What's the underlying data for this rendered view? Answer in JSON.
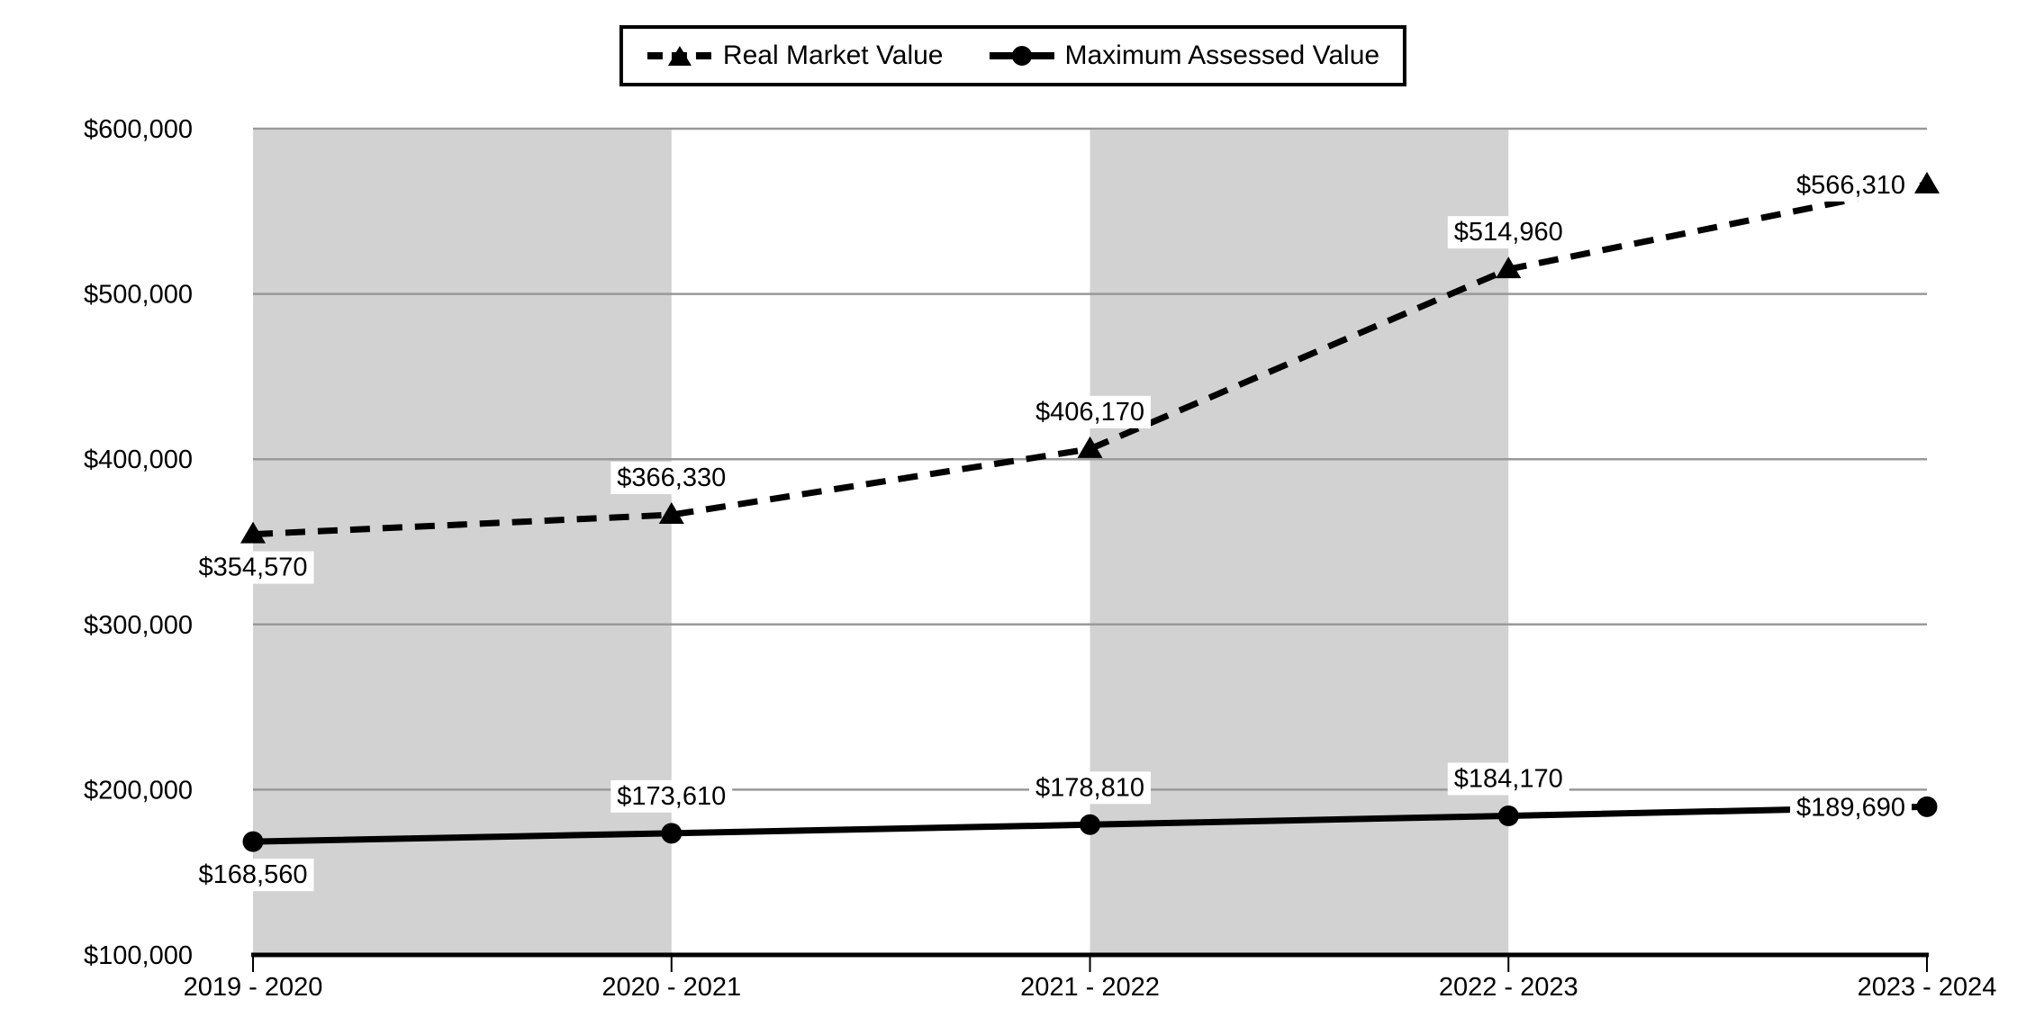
{
  "chart_data": {
    "type": "line",
    "title": "",
    "xlabel": "",
    "ylabel": "",
    "categories": [
      "2019 - 2020",
      "2020 - 2021",
      "2021 - 2022",
      "2022 - 2023",
      "2023 - 2024"
    ],
    "series": [
      {
        "name": "Real Market Value",
        "line_style": "dashed",
        "marker": "triangle",
        "color": "#000000",
        "values": [
          354570,
          366330,
          406170,
          514960,
          566310
        ],
        "data_labels": [
          "$354,570",
          "$366,330",
          "$406,170",
          "$514,960",
          "$566,310"
        ],
        "label_positions": [
          "below",
          "above",
          "above",
          "above",
          "left"
        ]
      },
      {
        "name": "Maximum Assessed Value",
        "line_style": "solid",
        "marker": "circle",
        "color": "#000000",
        "values": [
          168560,
          173610,
          178810,
          184170,
          189690
        ],
        "data_labels": [
          "$168,560",
          "$173,610",
          "$178,810",
          "$184,170",
          "$189,690"
        ],
        "label_positions": [
          "below",
          "above",
          "above",
          "above",
          "left"
        ]
      }
    ],
    "ylim": [
      100000,
      600000
    ],
    "y_tick_labels": [
      "$100,000",
      "$200,000",
      "$300,000",
      "$400,000",
      "$500,000",
      "$600,000"
    ],
    "grid": "horizontal",
    "legend_position": "top-center",
    "background_bands": {
      "color": "#d2d2d2",
      "intervals": [
        [
          0,
          1
        ],
        [
          2,
          3
        ]
      ]
    },
    "colors": {
      "gridline": "#999999",
      "axis": "#000000",
      "text": "#000000",
      "background": "#ffffff",
      "series": "#000000",
      "label_background": "#ffffff"
    }
  }
}
